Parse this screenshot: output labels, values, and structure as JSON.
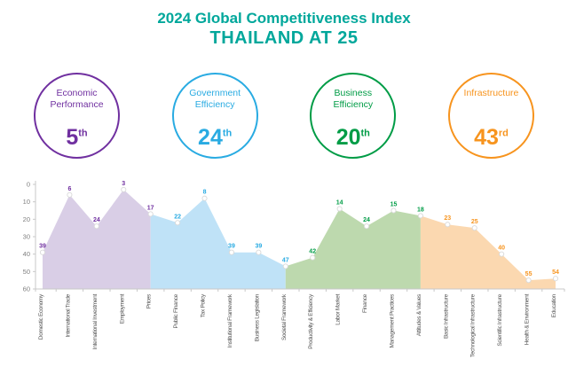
{
  "title": {
    "line1": "2024 Global Competitiveness Index",
    "line2": "THAILAND AT 25",
    "color": "#00A79B"
  },
  "categories": [
    {
      "name": "Economic Performance",
      "rank": "5",
      "suffix": "th",
      "color": "#7030A0"
    },
    {
      "name": "Government Efficiency",
      "rank": "24",
      "suffix": "th",
      "color": "#29ABE2"
    },
    {
      "name": "Business Efficiency",
      "rank": "20",
      "suffix": "th",
      "color": "#009C46"
    },
    {
      "name": "Infrastructure",
      "rank": "43",
      "suffix": "rd",
      "color": "#F7941E"
    }
  ],
  "chart_data": {
    "type": "area",
    "title": "2024 Global Competitiveness Index - Thailand sub-factor rankings",
    "categories": [
      "Domestic Economy",
      "International Trade",
      "International Investment",
      "Employment",
      "Prices",
      "Public Finance",
      "Tax Policy",
      "Institutional Framework",
      "Business Legislation",
      "Societal Framework",
      "Productivity & Efficiency",
      "Labor Market",
      "Finance",
      "Management Practices",
      "Attitudes & Values",
      "Basic Infrastructure",
      "Technological Infrastructure",
      "Scientific Infrastructure",
      "Health & Environment",
      "Education"
    ],
    "values": [
      39,
      6,
      24,
      3,
      17,
      22,
      8,
      39,
      39,
      47,
      42,
      14,
      24,
      15,
      18,
      23,
      25,
      40,
      55,
      54
    ],
    "sections": [
      {
        "name": "Economic Performance",
        "color": "#7030A0",
        "fill": "#D9CEE6",
        "start": 0,
        "end": 4
      },
      {
        "name": "Government Efficiency",
        "color": "#29ABE2",
        "fill": "#BFE2F7",
        "start": 4,
        "end": 9
      },
      {
        "name": "Business Efficiency",
        "color": "#009C46",
        "fill": "#BDD9AE",
        "start": 9,
        "end": 14
      },
      {
        "name": "Infrastructure",
        "color": "#F7941E",
        "fill": "#FBD8B0",
        "start": 14,
        "end": 19
      }
    ],
    "xlabel": "",
    "ylabel": "",
    "y_axis": {
      "min": 0,
      "max": 60,
      "ticks": [
        0,
        10,
        20,
        30,
        40,
        50,
        60
      ],
      "inverted": true
    },
    "grid": false,
    "legend": false,
    "axis_color": "#c8c8c8",
    "tick_label_color": "#808080",
    "x_label_color": "#555555"
  }
}
